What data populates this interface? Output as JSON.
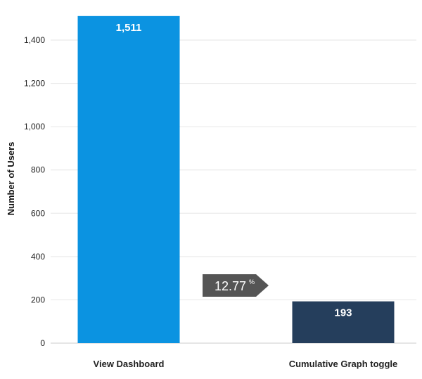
{
  "chart_data": {
    "type": "bar",
    "title": "",
    "xlabel": "",
    "ylabel": "Number of Users",
    "ylim": [
      0,
      1500
    ],
    "yticks": [
      0,
      200,
      400,
      600,
      800,
      1000,
      1200,
      1400
    ],
    "ytick_labels": [
      "0",
      "200",
      "400",
      "600",
      "800",
      "1,000",
      "1,200",
      "1,400"
    ],
    "grid": true,
    "categories": [
      "View Dashboard",
      "Cumulative Graph toggle"
    ],
    "values": [
      1511,
      193
    ],
    "value_labels": [
      "1,511",
      "193"
    ],
    "colors": [
      "#0B93E1",
      "#253E5C"
    ],
    "conversion": {
      "value": "12.77",
      "unit": "%"
    }
  },
  "colors": {
    "grid": "#e6e6e6",
    "axis": "#cccccc",
    "conversion_badge": "#555555"
  }
}
